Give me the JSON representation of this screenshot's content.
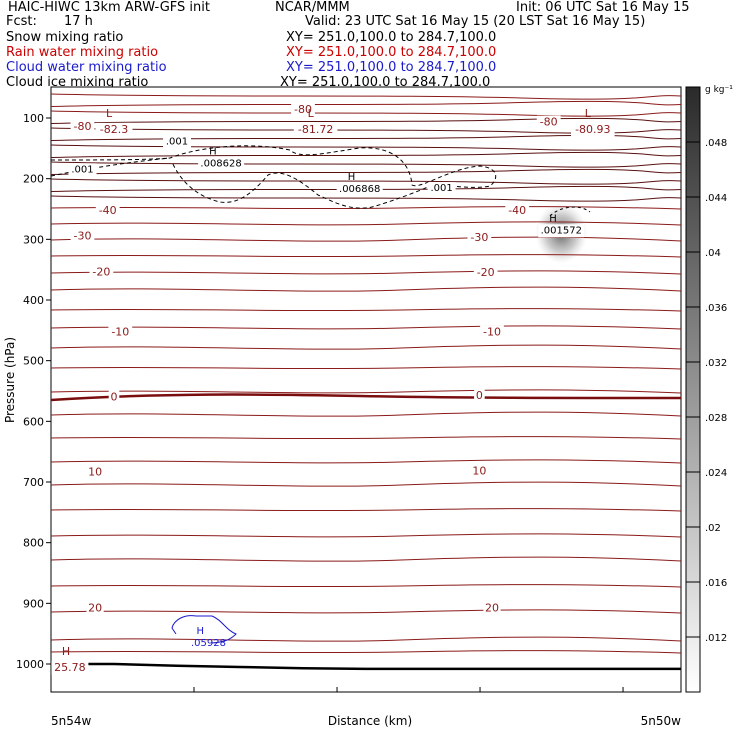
{
  "header": {
    "title_left": "HAIC-HIWC 13km ARW-GFS init",
    "org": "NCAR/MMM",
    "init": "Init: 06 UTC Sat 16 May 15",
    "fcst_label": "Fcst:",
    "fcst_value": "17 h",
    "valid": "Valid: 23 UTC Sat 16 May 15 (20 LST Sat 16 May 15)",
    "fields": [
      {
        "name": "Snow mixing ratio",
        "xy": "XY= 251.0,100.0 to 284.7,100.0",
        "color": "#000000"
      },
      {
        "name": "Rain water mixing ratio",
        "xy": "XY= 251.0,100.0 to 284.7,100.0",
        "color": "#cc0000"
      },
      {
        "name": "Cloud water mixing ratio",
        "xy": "XY= 251.0,100.0 to 284.7,100.0",
        "color": "#1a1acc"
      },
      {
        "name": "Cloud ice mixing ratio",
        "xy": "XY= 251.0,100.0 to 284.7,100.0",
        "color": "#000000"
      }
    ]
  },
  "chart_data": {
    "type": "contour-cross-section",
    "xlabel": "Distance (km)",
    "ylabel": "Pressure (hPa)",
    "x_endpoints": [
      "5n54w",
      "5n50w"
    ],
    "ylim": [
      1050,
      50
    ],
    "yticks": [
      100,
      200,
      300,
      400,
      500,
      600,
      700,
      800,
      900,
      1000
    ],
    "colorbar": {
      "unit": "g kg⁻¹",
      "ticks": [
        ".048",
        ".044",
        ".04",
        ".036",
        ".032",
        ".028",
        ".024",
        ".02",
        ".016",
        ".012"
      ]
    },
    "temperature_contours": {
      "color": "#8b1a1a",
      "labels": [
        {
          "text": "-80",
          "pressure": 113,
          "xf": 0.05
        },
        {
          "text": "-80",
          "pressure": 85,
          "xf": 0.4
        },
        {
          "text": "-80",
          "pressure": 106,
          "xf": 0.79
        },
        {
          "text": "-40",
          "pressure": 252,
          "xf": 0.09
        },
        {
          "text": "-40",
          "pressure": 252,
          "xf": 0.74
        },
        {
          "text": "-30",
          "pressure": 294,
          "xf": 0.05
        },
        {
          "text": "-30",
          "pressure": 296,
          "xf": 0.68
        },
        {
          "text": "-20",
          "pressure": 353,
          "xf": 0.08
        },
        {
          "text": "-20",
          "pressure": 354,
          "xf": 0.69
        },
        {
          "text": "-10",
          "pressure": 452,
          "xf": 0.11
        },
        {
          "text": "-10",
          "pressure": 452,
          "xf": 0.7
        },
        {
          "text": "0",
          "pressure": 559,
          "xf": 0.1
        },
        {
          "text": "0",
          "pressure": 557,
          "xf": 0.68
        },
        {
          "text": "10",
          "pressure": 683,
          "xf": 0.07
        },
        {
          "text": "10",
          "pressure": 681,
          "xf": 0.68
        },
        {
          "text": "20",
          "pressure": 907,
          "xf": 0.07
        },
        {
          "text": "20",
          "pressure": 907,
          "xf": 0.7
        }
      ],
      "extrema": [
        {
          "kind": "L",
          "value": "-82.3",
          "pressure": 108,
          "xf": 0.1
        },
        {
          "kind": "L",
          "value": "-81.72",
          "pressure": 108,
          "xf": 0.42
        },
        {
          "kind": "L",
          "value": "-80.93",
          "pressure": 108,
          "xf": 0.86
        },
        {
          "kind": "H",
          "value": "25.78",
          "pressure": 995,
          "xf": 0.03
        }
      ]
    },
    "cloud_ice": {
      "contour_value": ".001",
      "labels": [
        {
          "text": ".001",
          "xf": 0.2,
          "pressure": 137
        },
        {
          "text": ".001",
          "xf": 0.05,
          "pressure": 183
        },
        {
          "text": ".001",
          "xf": 0.62,
          "pressure": 214
        }
      ],
      "maxima": [
        {
          "kind": "H",
          "value": ".008628",
          "pressure": 180,
          "xf": 0.27
        },
        {
          "kind": "H",
          "value": ".006868",
          "pressure": 222,
          "xf": 0.49
        }
      ]
    },
    "snow": {
      "maxima": [
        {
          "kind": "H",
          "value": ".001572",
          "pressure": 290,
          "xf": 0.81
        }
      ]
    },
    "cloud_water": {
      "maxima": [
        {
          "kind": "H",
          "value": ".05928",
          "pressure": 970,
          "xf": 0.25
        }
      ]
    },
    "terrain_pressure": [
      1000,
      1000,
      1003,
      1005,
      1007,
      1008,
      1008,
      1008,
      1008,
      1008,
      1008
    ]
  }
}
